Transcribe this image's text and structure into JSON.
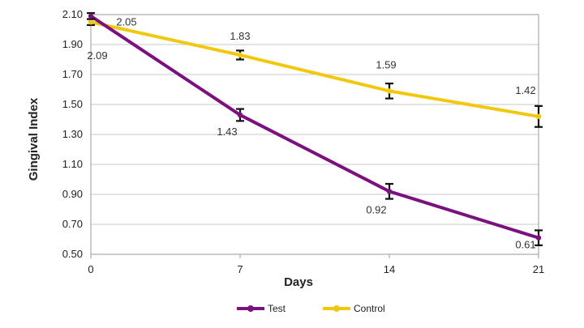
{
  "chart_data": {
    "type": "line",
    "xlabel": "Days",
    "ylabel": "Gingival Index",
    "x": [
      0,
      7,
      14,
      21
    ],
    "x_tick_labels": [
      "0",
      "7",
      "14",
      "21"
    ],
    "ylim": [
      0.5,
      2.1
    ],
    "y_ticks": [
      0.5,
      0.7,
      0.9,
      1.1,
      1.3,
      1.5,
      1.7,
      1.9,
      2.1
    ],
    "y_tick_labels": [
      "0.50",
      "0.70",
      "0.90",
      "1.10",
      "1.30",
      "1.50",
      "1.70",
      "1.90",
      "2.10"
    ],
    "grid": "horizontal",
    "legend_position": "bottom",
    "series": [
      {
        "name": "Test",
        "color": "#7b1180",
        "values": [
          2.09,
          1.43,
          0.92,
          0.61
        ],
        "errors": [
          0.02,
          0.04,
          0.05,
          0.05
        ],
        "labels": [
          "2.09",
          "1.43",
          "0.92",
          "0.61"
        ]
      },
      {
        "name": "Control",
        "color": "#f2c80f",
        "values": [
          2.05,
          1.83,
          1.59,
          1.42
        ],
        "errors": [
          0.02,
          0.03,
          0.05,
          0.07
        ],
        "labels": [
          "2.05",
          "1.83",
          "1.59",
          "1.42"
        ]
      }
    ]
  }
}
